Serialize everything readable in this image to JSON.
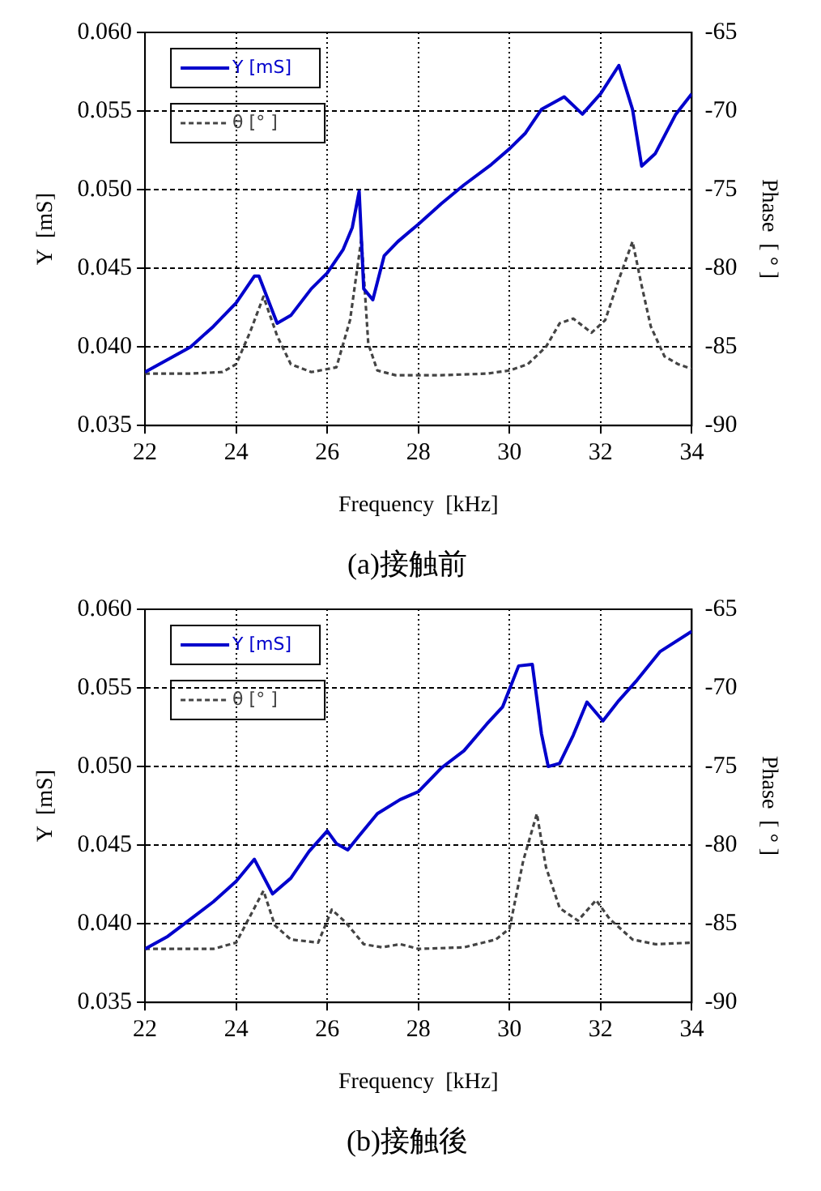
{
  "chart_data": [
    {
      "type": "line",
      "title": "(a)接触前",
      "xlabel": "Frequency  [kHz]",
      "ylabel": "Y  [mS]",
      "y2label": "Phase  [ ° ]",
      "xlim": [
        22,
        34
      ],
      "xticks": [
        22,
        24,
        26,
        28,
        30,
        32,
        34
      ],
      "ylim": [
        0.035,
        0.06
      ],
      "yticks": [
        {
          "value": 0.035,
          "label": "0.035"
        },
        {
          "value": 0.04,
          "label": "0.040"
        },
        {
          "value": 0.045,
          "label": "0.045"
        },
        {
          "value": 0.05,
          "label": "0.050"
        },
        {
          "value": 0.055,
          "label": "0.055"
        },
        {
          "value": 0.06,
          "label": "0.060"
        }
      ],
      "y2lim": [
        -90,
        -65
      ],
      "y2ticks": [
        -90,
        -85,
        -80,
        -75,
        -70,
        -65
      ],
      "grid": true,
      "legend": "top left",
      "marker": "none",
      "series": [
        {
          "name": "Y [mS]",
          "color": "#0000cc",
          "line_style": "solid",
          "x": [
            22,
            23,
            23.5,
            24,
            24.4,
            24.5,
            24.9,
            25.2,
            25.65,
            26,
            26.35,
            26.55,
            26.7,
            26.8,
            27,
            27.25,
            27.55,
            28,
            28.5,
            29,
            29.6,
            30,
            30.35,
            30.7,
            31.2,
            31.6,
            32,
            32.4,
            32.7,
            32.9,
            33.2,
            33.65,
            34
          ],
          "values": [
            0.0384,
            0.04,
            0.0413,
            0.0428,
            0.0445,
            0.0445,
            0.0415,
            0.042,
            0.0437,
            0.0447,
            0.0462,
            0.0476,
            0.0499,
            0.0437,
            0.043,
            0.0458,
            0.0467,
            0.0478,
            0.0491,
            0.0503,
            0.0516,
            0.0526,
            0.0536,
            0.0551,
            0.0559,
            0.0548,
            0.0561,
            0.0579,
            0.0551,
            0.0515,
            0.0523,
            0.0548,
            0.0561
          ]
        },
        {
          "name": "θ [° ]",
          "color": "#444444",
          "line_style": "dashed",
          "axis": "y2",
          "x": [
            22,
            23,
            23.7,
            24,
            24.3,
            24.6,
            24.9,
            25.2,
            25.65,
            26.2,
            26.5,
            26.75,
            26.9,
            27.1,
            27.5,
            28.5,
            29.5,
            30,
            30.4,
            30.8,
            31.1,
            31.4,
            31.8,
            32.1,
            32.4,
            32.7,
            32.9,
            33.1,
            33.4,
            33.7,
            34
          ],
          "values": [
            -86.7,
            -86.7,
            -86.6,
            -86.1,
            -84.1,
            -81.8,
            -84.3,
            -86.1,
            -86.6,
            -86.3,
            -83.3,
            -78.1,
            -84.8,
            -86.5,
            -86.8,
            -86.8,
            -86.7,
            -86.5,
            -86.1,
            -85,
            -83.5,
            -83.2,
            -84.1,
            -83.3,
            -80.7,
            -78.3,
            -81.1,
            -83.7,
            -85.6,
            -86.1,
            -86.4
          ]
        }
      ]
    },
    {
      "type": "line",
      "title": "(b)接触後",
      "xlabel": "Frequency  [kHz]",
      "ylabel": "Y  [mS]",
      "y2label": "Phase  [ ° ]",
      "xlim": [
        22,
        34
      ],
      "xticks": [
        22,
        24,
        26,
        28,
        30,
        32,
        34
      ],
      "ylim": [
        0.035,
        0.06
      ],
      "yticks": [
        {
          "value": 0.035,
          "label": "0.035"
        },
        {
          "value": 0.04,
          "label": "0.040"
        },
        {
          "value": 0.045,
          "label": "0.045"
        },
        {
          "value": 0.05,
          "label": "0.050"
        },
        {
          "value": 0.055,
          "label": "0.055"
        },
        {
          "value": 0.06,
          "label": "0.060"
        }
      ],
      "y2lim": [
        -90,
        -65
      ],
      "y2ticks": [
        -90,
        -85,
        -80,
        -75,
        -70,
        -65
      ],
      "grid": true,
      "legend": "top left",
      "marker": "none",
      "series": [
        {
          "name": "Y [mS]",
          "color": "#0000cc",
          "line_style": "solid",
          "x": [
            22,
            22.5,
            23,
            23.5,
            24,
            24.4,
            24.8,
            25.2,
            25.6,
            26,
            26.2,
            26.45,
            26.7,
            27.1,
            27.6,
            28,
            28.5,
            29,
            29.5,
            29.85,
            30.2,
            30.5,
            30.7,
            30.85,
            31.1,
            31.4,
            31.7,
            32.05,
            32.4,
            32.8,
            33.3,
            34
          ],
          "values": [
            0.0384,
            0.0392,
            0.0403,
            0.0414,
            0.0427,
            0.0441,
            0.0419,
            0.0429,
            0.0446,
            0.0459,
            0.0451,
            0.0447,
            0.0456,
            0.047,
            0.0479,
            0.0484,
            0.0499,
            0.051,
            0.0527,
            0.0538,
            0.0564,
            0.0565,
            0.0521,
            0.05,
            0.0502,
            0.052,
            0.0541,
            0.0529,
            0.0542,
            0.0555,
            0.0573,
            0.0586
          ]
        },
        {
          "name": "θ [° ]",
          "color": "#444444",
          "line_style": "dashed",
          "axis": "y2",
          "x": [
            22,
            23.5,
            24,
            24.4,
            24.6,
            24.85,
            25.2,
            25.8,
            26.1,
            26.4,
            26.8,
            27.2,
            27.6,
            28,
            29,
            29.7,
            30,
            30.3,
            30.6,
            30.8,
            31.1,
            31.5,
            31.9,
            32.2,
            32.7,
            33.2,
            34
          ],
          "values": [
            -86.6,
            -86.6,
            -86.2,
            -84,
            -82.9,
            -85.1,
            -86,
            -86.2,
            -84.1,
            -84.9,
            -86.3,
            -86.5,
            -86.3,
            -86.6,
            -86.5,
            -86,
            -85.3,
            -81,
            -78,
            -81.4,
            -84,
            -84.8,
            -83.5,
            -84.7,
            -86,
            -86.3,
            -86.2
          ]
        }
      ]
    }
  ]
}
